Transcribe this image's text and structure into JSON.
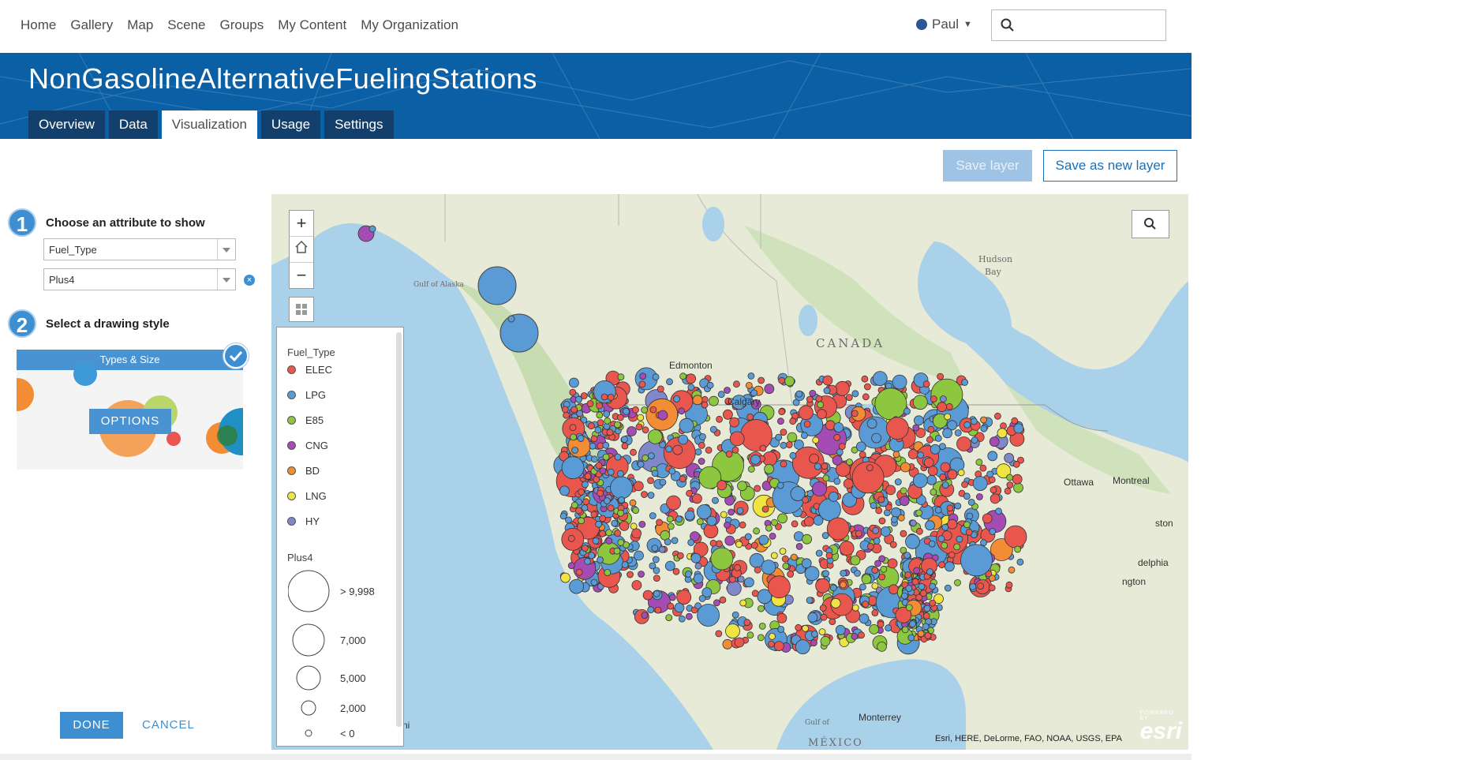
{
  "nav": {
    "links": [
      "Home",
      "Gallery",
      "Map",
      "Scene",
      "Groups",
      "My Content",
      "My Organization"
    ],
    "user": "Paul",
    "search_placeholder": ""
  },
  "banner": {
    "title": "NonGasolineAlternativeFuelingStations",
    "tabs": [
      {
        "label": "Overview",
        "active": false
      },
      {
        "label": "Data",
        "active": false
      },
      {
        "label": "Visualization",
        "active": true
      },
      {
        "label": "Usage",
        "active": false
      },
      {
        "label": "Settings",
        "active": false
      }
    ]
  },
  "actions": {
    "save_layer": "Save layer",
    "save_as_new": "Save as new layer"
  },
  "panel": {
    "step1_number": "1",
    "step1_label": "Choose an attribute to show",
    "attribute1": "Fuel_Type",
    "attribute2": "Plus4",
    "step2_number": "2",
    "step2_label": "Select a drawing style",
    "style_name": "Types & Size",
    "options_label": "OPTIONS",
    "done_label": "DONE",
    "cancel_label": "CANCEL"
  },
  "legend": {
    "type_title": "Fuel_Type",
    "types": [
      {
        "label": "ELEC",
        "color": "#e8564e"
      },
      {
        "label": "LPG",
        "color": "#5b9bd5"
      },
      {
        "label": "E85",
        "color": "#8dc63f"
      },
      {
        "label": "CNG",
        "color": "#a54cb4"
      },
      {
        "label": "BD",
        "color": "#f28d35"
      },
      {
        "label": "LNG",
        "color": "#f0e442"
      },
      {
        "label": "HY",
        "color": "#7f88c9"
      }
    ],
    "size_title": "Plus4",
    "sizes": [
      "> 9,998",
      "7,000",
      "5,000",
      "2,000",
      "< 0"
    ]
  },
  "map": {
    "labels": {
      "canada": "CANADA",
      "mexico": "MÉXICO",
      "hudson": "Hudson",
      "bay": "Bay",
      "gulf_alaska": "Gulf of Alaska",
      "gulf_mexico": "Gulf of",
      "edmonton": "Edmonton",
      "calgary": "Calgary",
      "ottawa": "Ottawa",
      "montreal": "Montreal",
      "ston": "ston",
      "delphia": "delphia",
      "ngton": "ngton",
      "monterrey": "Monterrey",
      "ni": "ni"
    },
    "attribution": "Esri, HERE, DeLorme, FAO, NOAA, USGS, EPA",
    "powered_by": "POWERED BY",
    "brand": "esri"
  },
  "colors": {
    "accent": "#0a5fa5",
    "button": "#3d8fd1"
  }
}
